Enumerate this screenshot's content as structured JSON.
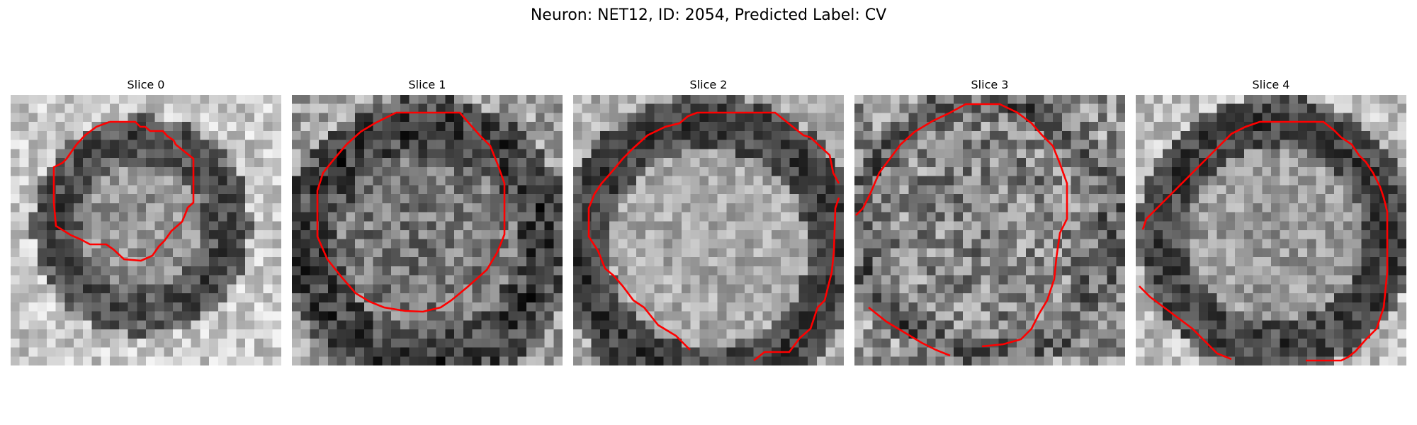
{
  "figure": {
    "suptitle": "Neuron: NET12, ID: 2054, Predicted Label: CV",
    "contour_color": "#ff0000",
    "colormap": "gray"
  },
  "panels": [
    {
      "title": "Slice 0"
    },
    {
      "title": "Slice 1"
    },
    {
      "title": "Slice 2"
    },
    {
      "title": "Slice 3"
    },
    {
      "title": "Slice 4"
    }
  ]
}
